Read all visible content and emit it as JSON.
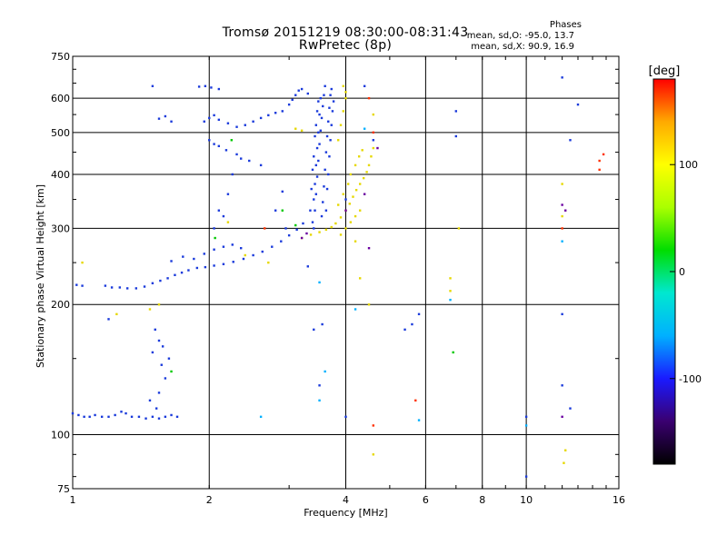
{
  "header": {
    "title_line1": "Tromsø 20151219 08:30:00-08:31:43",
    "title_line2": "RwPretec (8p)",
    "phase_title": "Phases",
    "phase_line1": "mean, sd,O: -95.0, 13.7",
    "phase_line2": "mean, sd,X:  90.9, 16.9"
  },
  "chart_data": {
    "type": "scatter",
    "xlabel": "Frequency [MHz]",
    "ylabel": "Stationary phase Virtual Height [km]",
    "xscale": "log",
    "yscale": "log",
    "xlim": [
      1,
      16
    ],
    "ylim": [
      75,
      750
    ],
    "x_ticks": [
      1,
      2,
      4,
      6,
      8,
      10,
      16
    ],
    "y_ticks": [
      75,
      100,
      200,
      300,
      400,
      500,
      600,
      750
    ],
    "x_grid": [
      2,
      4,
      6,
      8,
      10,
      16
    ],
    "y_grid": [
      100,
      200,
      300,
      400,
      500,
      600
    ],
    "grid": true,
    "colorbar": {
      "label": "[deg]",
      "range": [
        -180,
        180
      ],
      "ticks": [
        100,
        0,
        -100
      ],
      "colors": [
        "#000000",
        "#3a0070",
        "#1a1aff",
        "#00b0ff",
        "#00e8d0",
        "#00dd00",
        "#aaff00",
        "#ffff00",
        "#ffaa00",
        "#ff0000"
      ]
    },
    "series": [
      {
        "color": "#1a3adb",
        "points": [
          [
            1.0,
            112
          ],
          [
            1.03,
            111
          ],
          [
            1.06,
            110
          ],
          [
            1.09,
            110
          ],
          [
            1.12,
            111
          ],
          [
            1.16,
            110
          ],
          [
            1.2,
            110
          ],
          [
            1.24,
            111
          ],
          [
            1.28,
            113
          ],
          [
            1.31,
            112
          ],
          [
            1.35,
            110
          ],
          [
            1.4,
            110
          ],
          [
            1.45,
            109
          ],
          [
            1.5,
            110
          ],
          [
            1.55,
            109
          ],
          [
            1.6,
            110
          ],
          [
            1.65,
            111
          ],
          [
            1.7,
            110
          ],
          [
            1.02,
            222
          ],
          [
            1.05,
            221
          ],
          [
            1.18,
            221
          ],
          [
            1.22,
            219
          ],
          [
            1.27,
            219
          ],
          [
            1.32,
            218
          ],
          [
            1.38,
            218
          ],
          [
            1.44,
            220
          ],
          [
            1.5,
            224
          ],
          [
            1.56,
            227
          ],
          [
            1.62,
            230
          ],
          [
            1.68,
            234
          ],
          [
            1.74,
            237
          ],
          [
            1.8,
            240
          ],
          [
            1.88,
            243
          ],
          [
            1.96,
            244
          ],
          [
            2.05,
            246
          ],
          [
            2.15,
            248
          ],
          [
            2.26,
            251
          ],
          [
            2.38,
            255
          ],
          [
            2.5,
            260
          ],
          [
            2.62,
            265
          ],
          [
            2.75,
            272
          ],
          [
            2.88,
            280
          ],
          [
            3.0,
            289
          ],
          [
            3.12,
            298
          ],
          [
            3.22,
            308
          ],
          [
            1.85,
            255
          ],
          [
            1.95,
            262
          ],
          [
            2.05,
            268
          ],
          [
            2.15,
            272
          ],
          [
            2.25,
            275
          ],
          [
            2.35,
            270
          ],
          [
            1.75,
            258
          ],
          [
            1.65,
            252
          ],
          [
            2.05,
            300
          ],
          [
            2.15,
            320
          ],
          [
            2.2,
            360
          ],
          [
            2.1,
            330
          ],
          [
            2.25,
            400
          ],
          [
            2.4,
            520
          ],
          [
            2.5,
            530
          ],
          [
            2.6,
            540
          ],
          [
            2.7,
            548
          ],
          [
            2.8,
            555
          ],
          [
            2.9,
            560
          ],
          [
            2.3,
            515
          ],
          [
            2.2,
            525
          ],
          [
            2.1,
            535
          ],
          [
            2.0,
            540
          ],
          [
            1.95,
            530
          ],
          [
            2.05,
            548
          ],
          [
            1.6,
            545
          ],
          [
            1.55,
            538
          ],
          [
            1.65,
            530
          ],
          [
            1.96,
            640
          ],
          [
            2.02,
            635
          ],
          [
            2.1,
            630
          ],
          [
            1.9,
            638
          ],
          [
            2.0,
            480
          ],
          [
            2.05,
            470
          ],
          [
            2.1,
            465
          ],
          [
            2.18,
            455
          ],
          [
            2.3,
            445
          ],
          [
            2.45,
            430
          ],
          [
            2.6,
            420
          ],
          [
            2.35,
            435
          ],
          [
            2.8,
            330
          ],
          [
            2.9,
            365
          ],
          [
            2.95,
            300
          ],
          [
            3.0,
            580
          ],
          [
            3.05,
            595
          ],
          [
            3.1,
            610
          ],
          [
            3.15,
            625
          ],
          [
            3.2,
            630
          ],
          [
            3.3,
            615
          ],
          [
            3.4,
            300
          ],
          [
            3.42,
            330
          ],
          [
            3.44,
            360
          ],
          [
            3.46,
            395
          ],
          [
            3.48,
            430
          ],
          [
            3.5,
            470
          ],
          [
            3.52,
            505
          ],
          [
            3.54,
            540
          ],
          [
            3.56,
            575
          ],
          [
            3.58,
            610
          ],
          [
            3.6,
            640
          ],
          [
            3.38,
            310
          ],
          [
            3.4,
            350
          ],
          [
            3.42,
            380
          ],
          [
            3.44,
            420
          ],
          [
            3.46,
            460
          ],
          [
            3.48,
            500
          ],
          [
            3.5,
            550
          ],
          [
            3.52,
            600
          ],
          [
            3.54,
            320
          ],
          [
            3.56,
            345
          ],
          [
            3.58,
            375
          ],
          [
            3.6,
            410
          ],
          [
            3.62,
            450
          ],
          [
            3.64,
            490
          ],
          [
            3.66,
            530
          ],
          [
            3.68,
            570
          ],
          [
            3.7,
            610
          ],
          [
            3.72,
            630
          ],
          [
            3.34,
            330
          ],
          [
            3.36,
            370
          ],
          [
            3.38,
            410
          ],
          [
            3.4,
            440
          ],
          [
            3.42,
            490
          ],
          [
            3.44,
            520
          ],
          [
            3.46,
            560
          ],
          [
            3.48,
            590
          ],
          [
            3.62,
            330
          ],
          [
            3.64,
            370
          ],
          [
            3.66,
            400
          ],
          [
            3.68,
            440
          ],
          [
            3.7,
            480
          ],
          [
            3.72,
            520
          ],
          [
            3.74,
            560
          ],
          [
            3.76,
            590
          ],
          [
            1.5,
            640
          ],
          [
            1.2,
            185
          ],
          [
            1.52,
            175
          ],
          [
            1.55,
            165
          ],
          [
            1.5,
            155
          ],
          [
            1.57,
            145
          ],
          [
            1.6,
            135
          ],
          [
            1.58,
            160
          ],
          [
            1.63,
            150
          ],
          [
            1.55,
            125
          ],
          [
            1.48,
            120
          ],
          [
            1.53,
            115
          ],
          [
            3.5,
            130
          ],
          [
            3.55,
            180
          ],
          [
            4.0,
            110
          ],
          [
            4.0,
            350
          ],
          [
            4.4,
            640
          ],
          [
            4.6,
            480
          ],
          [
            5.4,
            175
          ],
          [
            5.6,
            180
          ],
          [
            5.8,
            190
          ],
          [
            7.0,
            560
          ],
          [
            7.0,
            490
          ],
          [
            12.0,
            670
          ],
          [
            12.5,
            480
          ],
          [
            13.0,
            580
          ],
          [
            12.0,
            190
          ],
          [
            12.0,
            130
          ],
          [
            12.5,
            115
          ],
          [
            10.0,
            80
          ],
          [
            10.0,
            110
          ],
          [
            3.4,
            175
          ],
          [
            3.3,
            245
          ]
        ]
      },
      {
        "color": "#e6d800",
        "points": [
          [
            3.2,
            285
          ],
          [
            3.35,
            290
          ],
          [
            3.5,
            294
          ],
          [
            3.62,
            298
          ],
          [
            3.72,
            302
          ],
          [
            3.8,
            308
          ],
          [
            3.9,
            318
          ],
          [
            4.0,
            330
          ],
          [
            4.08,
            342
          ],
          [
            4.15,
            355
          ],
          [
            4.22,
            368
          ],
          [
            4.3,
            380
          ],
          [
            4.38,
            392
          ],
          [
            4.45,
            405
          ],
          [
            4.5,
            420
          ],
          [
            4.55,
            440
          ],
          [
            4.6,
            460
          ],
          [
            3.85,
            340
          ],
          [
            3.95,
            360
          ],
          [
            4.05,
            380
          ],
          [
            4.1,
            400
          ],
          [
            4.2,
            420
          ],
          [
            4.28,
            440
          ],
          [
            4.35,
            455
          ],
          [
            3.9,
            290
          ],
          [
            4.0,
            300
          ],
          [
            4.1,
            310
          ],
          [
            4.2,
            320
          ],
          [
            4.3,
            330
          ],
          [
            3.85,
            480
          ],
          [
            3.9,
            520
          ],
          [
            3.95,
            560
          ],
          [
            4.0,
            600
          ],
          [
            3.95,
            640
          ],
          [
            3.1,
            510
          ],
          [
            3.2,
            505
          ],
          [
            2.7,
            250
          ],
          [
            2.4,
            260
          ],
          [
            2.2,
            310
          ],
          [
            1.48,
            195
          ],
          [
            1.55,
            200
          ],
          [
            1.05,
            250
          ],
          [
            1.25,
            190
          ],
          [
            4.2,
            280
          ],
          [
            4.3,
            230
          ],
          [
            4.5,
            200
          ],
          [
            6.8,
            230
          ],
          [
            6.8,
            215
          ],
          [
            7.1,
            300
          ],
          [
            12.0,
            320
          ],
          [
            12.0,
            380
          ],
          [
            12.1,
            86
          ],
          [
            12.2,
            92
          ],
          [
            4.6,
            90
          ],
          [
            4.0,
            620
          ],
          [
            4.6,
            550
          ]
        ]
      },
      {
        "color": "#00c800",
        "points": [
          [
            1.65,
            140
          ],
          [
            2.06,
            285
          ],
          [
            2.24,
            480
          ],
          [
            3.1,
            305
          ],
          [
            2.9,
            330
          ],
          [
            6.9,
            155
          ]
        ]
      },
      {
        "color": "#ff3000",
        "points": [
          [
            4.5,
            600
          ],
          [
            4.6,
            500
          ],
          [
            12.0,
            300
          ],
          [
            14.5,
            430
          ],
          [
            14.8,
            445
          ],
          [
            5.7,
            120
          ],
          [
            4.6,
            105
          ],
          [
            14.5,
            410
          ],
          [
            2.65,
            300
          ]
        ]
      },
      {
        "color": "#00b0ff",
        "points": [
          [
            3.5,
            120
          ],
          [
            3.6,
            140
          ],
          [
            4.4,
            510
          ],
          [
            5.8,
            108
          ],
          [
            6.8,
            205
          ],
          [
            10.0,
            105
          ],
          [
            12.0,
            280
          ],
          [
            3.5,
            225
          ],
          [
            2.6,
            110
          ],
          [
            4.2,
            195
          ]
        ]
      },
      {
        "color": "#6a00a0",
        "points": [
          [
            3.2,
            285
          ],
          [
            3.28,
            292
          ],
          [
            4.0,
            330
          ],
          [
            4.4,
            360
          ],
          [
            4.5,
            270
          ],
          [
            12.0,
            340
          ],
          [
            12.2,
            330
          ],
          [
            12.0,
            110
          ],
          [
            4.7,
            460
          ]
        ]
      }
    ]
  }
}
